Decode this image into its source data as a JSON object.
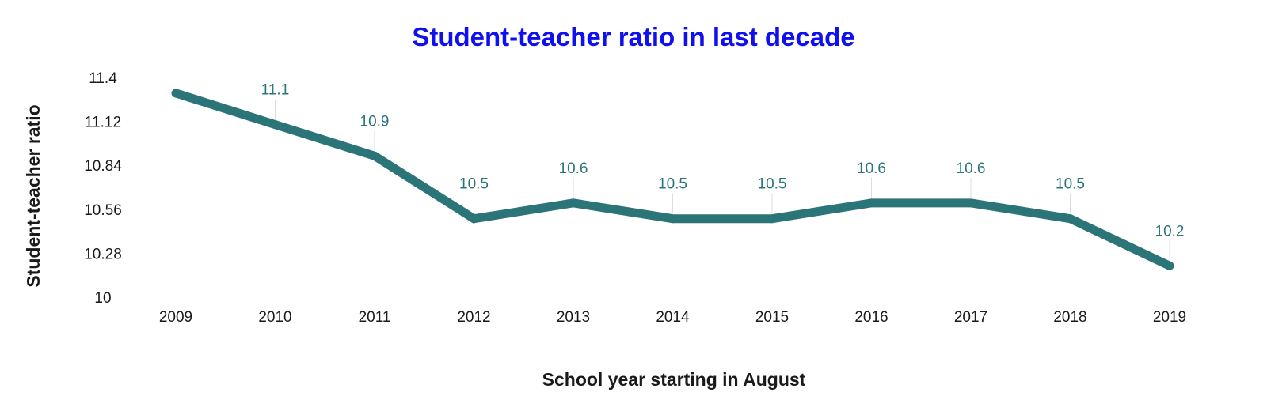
{
  "chart_data": {
    "type": "line",
    "title": "Student-teacher ratio in last decade",
    "xlabel": "School year starting in August",
    "ylabel": "Student-teacher ratio",
    "categories": [
      "2009",
      "2010",
      "2011",
      "2012",
      "2013",
      "2014",
      "2015",
      "2016",
      "2017",
      "2018",
      "2019"
    ],
    "series": [
      {
        "values": [
          11.3,
          11.1,
          10.9,
          10.5,
          10.6,
          10.5,
          10.5,
          10.6,
          10.6,
          10.5,
          10.2
        ],
        "data_labels": [
          "",
          "11.1",
          "10.9",
          "10.5",
          "10.6",
          "10.5",
          "10.5",
          "10.6",
          "10.6",
          "10.5",
          "10.2"
        ]
      }
    ],
    "yticks": [
      "10",
      "10.28",
      "10.56",
      "10.84",
      "11.12",
      "11.4"
    ],
    "ylim": [
      10,
      11.4
    ],
    "grid": false,
    "legend": "none",
    "colors": {
      "title": "#1010ee",
      "line": "#2b7579",
      "data_label": "#2b7579",
      "leader_line": "#dddddd"
    }
  }
}
